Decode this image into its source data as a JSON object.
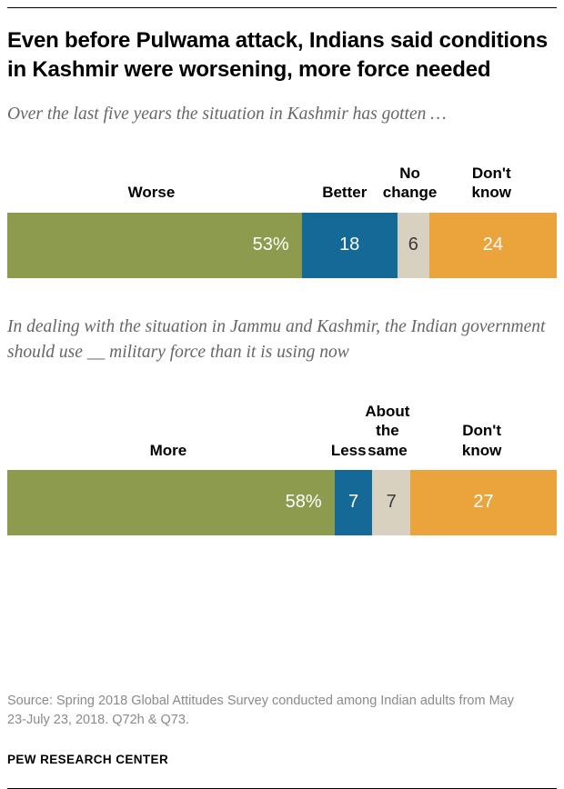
{
  "title": "Even before Pulwama attack, Indians said conditions in Kashmir were worsening, more force needed",
  "source": "Source: Spring 2018 Global Attitudes Survey conducted among Indian adults from May 23-July 23, 2018. Q72h & Q73.",
  "footer": "PEW RESEARCH CENTER",
  "colors": {
    "green": "#8c9b4e",
    "blue": "#156996",
    "tan": "#d8d1bf",
    "orange": "#eba33c",
    "rule": "#000000",
    "subtitle_text": "#666666",
    "source_text": "#8a8a8a"
  },
  "chart_data": [
    {
      "type": "bar",
      "orientation": "horizontal-stacked",
      "title": "Over the last five years the situation in Kashmir has gotten …",
      "categories": [
        "Worse",
        "Better",
        "No change",
        "Don't know"
      ],
      "values": [
        53,
        18,
        6,
        24
      ],
      "value_labels": [
        "53%",
        "18",
        "6",
        "24"
      ],
      "colors": [
        "#8c9b4e",
        "#156996",
        "#d8d1bf",
        "#eba33c"
      ],
      "label_text_colors": [
        "#ffffff",
        "#ffffff",
        "#3a3a3a",
        "#ffffff"
      ],
      "xlim": [
        0,
        100
      ],
      "grid": false,
      "legend_position": "labels-above-segments"
    },
    {
      "type": "bar",
      "orientation": "horizontal-stacked",
      "title": "In dealing with the situation in Jammu and Kashmir, the Indian government should use __ military force than it is using now",
      "categories": [
        "More",
        "Less",
        "About the same",
        "Don't know"
      ],
      "values": [
        58,
        7,
        7,
        27
      ],
      "value_labels": [
        "58%",
        "7",
        "7",
        "27"
      ],
      "colors": [
        "#8c9b4e",
        "#156996",
        "#d8d1bf",
        "#eba33c"
      ],
      "label_text_colors": [
        "#ffffff",
        "#ffffff",
        "#3a3a3a",
        "#ffffff"
      ],
      "xlim": [
        0,
        100
      ],
      "grid": false,
      "legend_position": "labels-above-segments"
    }
  ]
}
